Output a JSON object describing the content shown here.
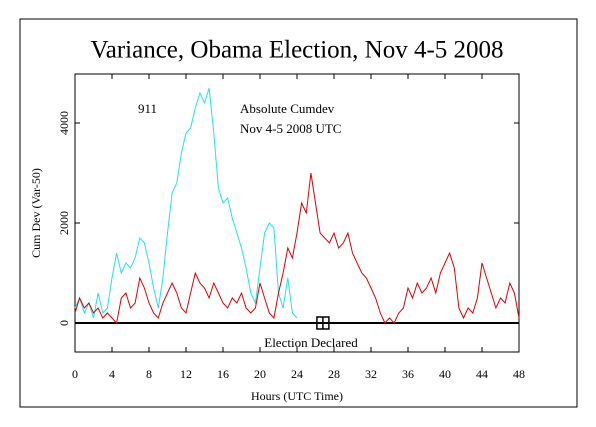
{
  "chart_data": {
    "type": "line",
    "title": "Variance, Obama Election, Nov 4-5 2008",
    "xlabel": "Hours (UTC Time)",
    "ylabel": "Cum Dev (Var-50)",
    "subtitle": "Nov 4-5 2008 UTC",
    "xlim": [
      0,
      48
    ],
    "xticks": [
      0,
      4,
      8,
      12,
      16,
      20,
      24,
      28,
      32,
      36,
      40,
      44,
      48
    ],
    "ylim": [
      -580,
      4980
    ],
    "yticks": [
      0,
      2000,
      4000
    ],
    "marker": {
      "x": 26.8,
      "y": 0,
      "label": "Election Declared"
    },
    "series": [
      {
        "name": "911",
        "color": "#22e0f0",
        "x": [
          0,
          0.5,
          1,
          1.5,
          2,
          2.5,
          3,
          3.5,
          4,
          4.5,
          5,
          5.5,
          6,
          6.5,
          7,
          7.5,
          8,
          8.5,
          9,
          9.5,
          10,
          10.5,
          11,
          11.5,
          12,
          12.5,
          13,
          13.5,
          14,
          14.5,
          15,
          15.5,
          16,
          16.5,
          17,
          17.5,
          18,
          18.5,
          19,
          19.5,
          20,
          20.5,
          21,
          21.5,
          22,
          22.5,
          23,
          23.5,
          24
        ],
        "values": [
          300,
          500,
          200,
          400,
          100,
          600,
          200,
          300,
          900,
          1400,
          1000,
          1200,
          1100,
          1300,
          1700,
          1600,
          1200,
          700,
          300,
          900,
          1800,
          2600,
          2800,
          3400,
          3800,
          3900,
          4300,
          4600,
          4400,
          4700,
          3800,
          2700,
          2400,
          2500,
          2100,
          1800,
          1500,
          1100,
          600,
          400,
          1100,
          1800,
          2000,
          1900,
          600,
          300,
          900,
          200,
          100
        ]
      },
      {
        "name": "Absolute Cumdev",
        "color": "#e00000",
        "x": [
          0,
          0.5,
          1,
          1.5,
          2,
          2.5,
          3,
          3.5,
          4,
          4.5,
          5,
          5.5,
          6,
          6.5,
          7,
          7.5,
          8,
          8.5,
          9,
          9.5,
          10,
          10.5,
          11,
          11.5,
          12,
          12.5,
          13,
          13.5,
          14,
          14.5,
          15,
          15.5,
          16,
          16.5,
          17,
          17.5,
          18,
          18.5,
          19,
          19.5,
          20,
          20.5,
          21,
          21.5,
          22,
          22.5,
          23,
          23.5,
          24,
          24.5,
          25,
          25.5,
          26,
          26.5,
          27,
          27.5,
          28,
          28.5,
          29,
          29.5,
          30,
          30.5,
          31,
          31.5,
          32,
          32.5,
          33,
          33.5,
          34,
          34.5,
          35,
          35.5,
          36,
          36.5,
          37,
          37.5,
          38,
          38.5,
          39,
          39.5,
          40,
          40.5,
          41,
          41.5,
          42,
          42.5,
          43,
          43.5,
          44,
          44.5,
          45,
          45.5,
          46,
          46.5,
          47,
          47.5,
          48
        ],
        "values": [
          200,
          500,
          300,
          400,
          200,
          300,
          100,
          200,
          100,
          0,
          500,
          600,
          300,
          400,
          900,
          700,
          400,
          200,
          100,
          400,
          600,
          800,
          600,
          300,
          200,
          600,
          1000,
          800,
          700,
          500,
          800,
          600,
          400,
          300,
          500,
          400,
          600,
          300,
          200,
          300,
          800,
          500,
          200,
          100,
          600,
          1000,
          1500,
          1300,
          1800,
          2400,
          2200,
          3000,
          2400,
          1800,
          1700,
          1600,
          1800,
          1500,
          1600,
          1800,
          1400,
          1200,
          1000,
          900,
          700,
          500,
          200,
          0,
          100,
          0,
          200,
          300,
          700,
          500,
          800,
          600,
          700,
          900,
          600,
          1000,
          1200,
          1400,
          1100,
          300,
          100,
          300,
          200,
          500,
          1200,
          900,
          600,
          300,
          500,
          400,
          800,
          600,
          100
        ]
      }
    ]
  }
}
